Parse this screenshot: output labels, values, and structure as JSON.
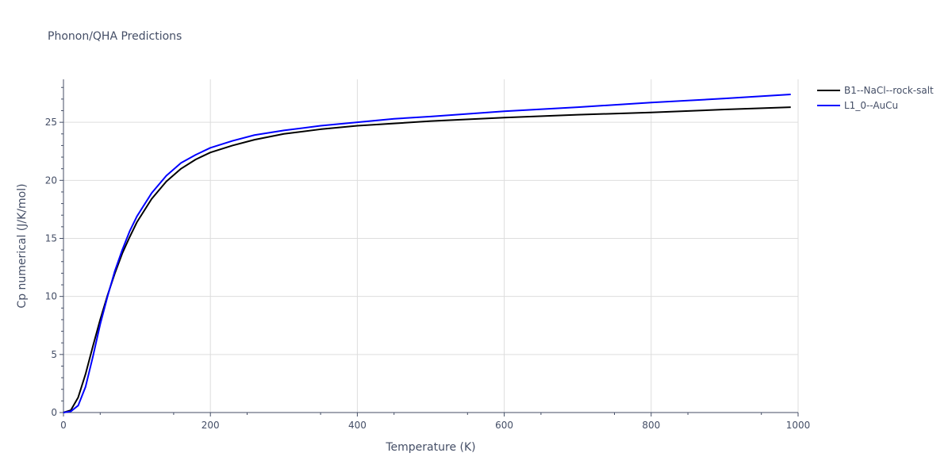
{
  "chart_data": {
    "type": "line",
    "title": "Phonon/QHA Predictions",
    "xlabel": "Temperature (K)",
    "ylabel": "Cp numerical (J/K/mol)",
    "xlim": [
      0,
      1000
    ],
    "ylim": [
      0,
      28.7
    ],
    "x_ticks": [
      0,
      200,
      400,
      600,
      800,
      1000
    ],
    "y_ticks": [
      0,
      5,
      10,
      15,
      20,
      25
    ],
    "grid": true,
    "legend_position": "top-right",
    "series": [
      {
        "name": "B1--NaCl--rock-salt",
        "color": "#000000",
        "x": [
          0,
          10,
          20,
          30,
          40,
          50,
          60,
          70,
          80,
          90,
          100,
          120,
          140,
          160,
          180,
          200,
          230,
          260,
          300,
          350,
          400,
          450,
          500,
          600,
          700,
          800,
          900,
          990
        ],
        "y": [
          0,
          0.2,
          1.3,
          3.3,
          5.7,
          8.0,
          10.1,
          12.0,
          13.7,
          15.1,
          16.4,
          18.4,
          19.9,
          21.0,
          21.8,
          22.4,
          23.0,
          23.5,
          24.0,
          24.4,
          24.7,
          24.9,
          25.1,
          25.4,
          25.65,
          25.85,
          26.1,
          26.3
        ]
      },
      {
        "name": "L1_0--AuCu",
        "color": "#0000ff",
        "x": [
          0,
          10,
          20,
          30,
          40,
          50,
          60,
          70,
          80,
          90,
          100,
          120,
          140,
          160,
          180,
          200,
          230,
          260,
          300,
          350,
          400,
          450,
          500,
          600,
          700,
          800,
          900,
          990
        ],
        "y": [
          0,
          0.1,
          0.6,
          2.2,
          4.8,
          7.6,
          10.0,
          12.2,
          14.0,
          15.6,
          16.9,
          18.9,
          20.4,
          21.5,
          22.2,
          22.8,
          23.4,
          23.9,
          24.3,
          24.7,
          25.0,
          25.3,
          25.5,
          25.95,
          26.3,
          26.7,
          27.05,
          27.4
        ]
      }
    ]
  },
  "colors": {
    "axis_text": "#444e66",
    "grid": "#dddddd"
  }
}
